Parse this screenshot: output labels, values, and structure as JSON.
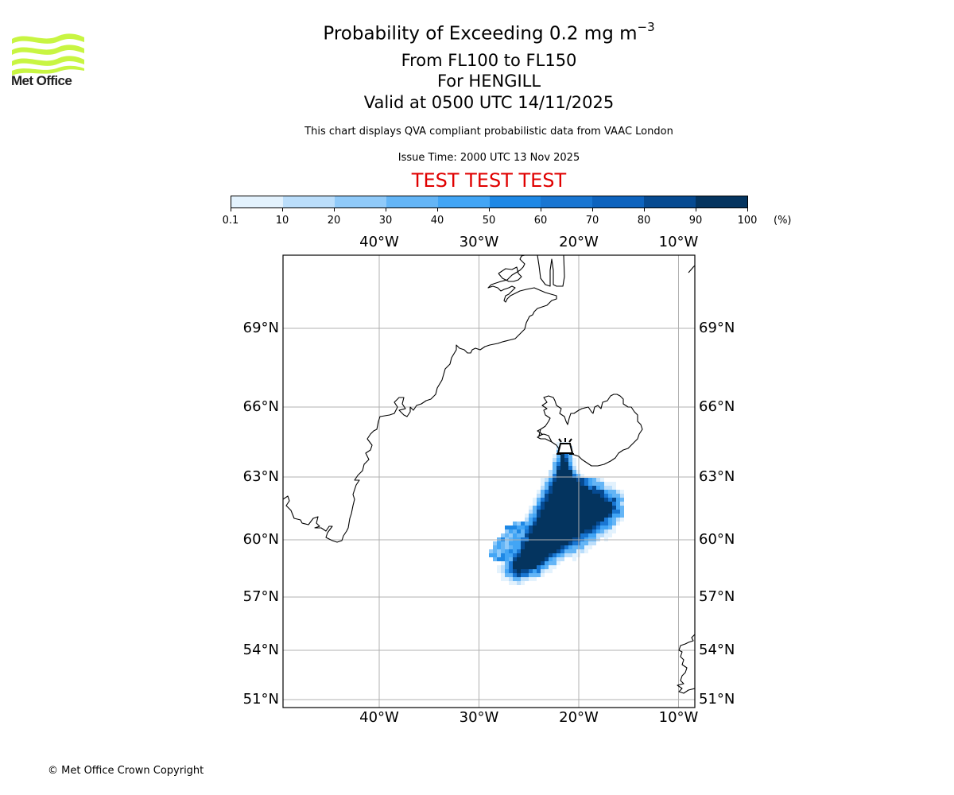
{
  "logo": {
    "text": "Met Office",
    "color": "#c8f542"
  },
  "header": {
    "title_main": "Probability of Exceeding 0.2 mg m",
    "title_sup": "−3",
    "flight_levels": "From FL100 to FL150",
    "volcano": "For HENGILL",
    "valid": "Valid at 0500 UTC 14/11/2025",
    "subtitle": "This chart displays QVA compliant probabilistic data from VAAC London",
    "issue_time": "Issue Time: 2000 UTC 13 Nov 2025",
    "test_banner": "TEST TEST TEST",
    "test_color": "#e00000"
  },
  "colorbar": {
    "unit": "(%)",
    "ticks": [
      "0.1",
      "10",
      "20",
      "30",
      "40",
      "50",
      "60",
      "70",
      "80",
      "90",
      "100"
    ],
    "colors": [
      "#e3f2fd",
      "#bbdefb",
      "#90caf9",
      "#64b5f6",
      "#42a5f5",
      "#1e88e5",
      "#1976d2",
      "#0d63be",
      "#064a91",
      "#04345f"
    ]
  },
  "map": {
    "lon_labels_top": [
      "40°W",
      "30°W",
      "20°W",
      "10°W"
    ],
    "lon_labels_bottom": [
      "40°W",
      "30°W",
      "20°W",
      "10°W"
    ],
    "lat_labels_left": [
      "69°N",
      "66°N",
      "63°N",
      "60°N",
      "57°N",
      "54°N",
      "51°N"
    ],
    "lat_labels_right": [
      "69°N",
      "66°N",
      "63°N",
      "60°N",
      "57°N",
      "54°N",
      "51°N"
    ],
    "grid_color": "#b0b0b0",
    "coast_color": "#000000",
    "volcano_marker": "volcano-icon"
  },
  "chart_data": {
    "type": "heatmap",
    "title": "Probability of Exceeding 0.2 mg m−3",
    "variable": "probability",
    "units": "(%)",
    "levels": [
      0.1,
      10,
      20,
      30,
      40,
      50,
      60,
      70,
      80,
      90,
      100
    ],
    "lon_ticks": [
      -40,
      -30,
      -20,
      -10
    ],
    "lat_ticks": [
      69,
      66,
      63,
      60,
      57,
      54,
      51
    ],
    "lon_range": [
      -49.6,
      -8.4
    ],
    "lat_range": [
      50.6,
      71.5
    ],
    "source_volcano": {
      "name": "HENGILL",
      "lat": 64.1,
      "lon": -21.3
    },
    "plume_summary": "Core >90% from Hengill SW to about 58.5N 25.5W, east lobe to about 61N 17W"
  },
  "footer": {
    "copyright": "© Met Office Crown Copyright"
  }
}
